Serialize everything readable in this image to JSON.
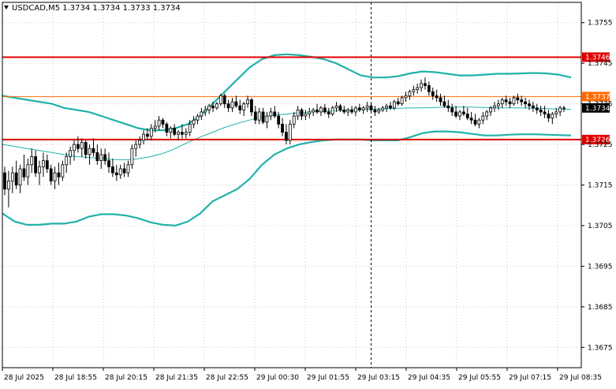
{
  "chart_data": {
    "type": "candlestick",
    "title": "USDCAD,M5  1.3734 1.3734 1.3733 1.3734",
    "symbol": "USDCAD",
    "timeframe": "M5",
    "ohlc_header": [
      "1.3734",
      "1.3734",
      "1.3733",
      "1.3734"
    ],
    "current_price": "1.3734",
    "ylim": [
      1.367,
      1.376
    ],
    "y_ticks": [
      "1.3755",
      "1.3745",
      "1.3735",
      "1.3725",
      "1.3715",
      "1.3705",
      "1.3695",
      "1.3685",
      "1.3675"
    ],
    "x_ticks": [
      "28 Jul 2025",
      "28 Jul 18:55",
      "28 Jul 20:15",
      "28 Jul 21:35",
      "28 Jul 22:55",
      "29 Jul 00:30",
      "29 Jul 01:55",
      "29 Jul 03:15",
      "29 Jul 04:35",
      "29 Jul 05:55",
      "29 Jul 07:15",
      "29 Jul 08:35"
    ],
    "horizontal_levels": [
      {
        "value": "1.3746",
        "price": 1.37465,
        "color": "#e00000",
        "width": 2
      },
      {
        "value": "1.3737",
        "price": 1.37368,
        "color": "#ff6a00",
        "width": 1
      },
      {
        "value": "1.3726",
        "price": 1.37262,
        "color": "#e00000",
        "width": 2
      }
    ],
    "cursor_candle_index": 95,
    "candles": [
      [
        1.3718,
        1.37195,
        1.37125,
        1.3714
      ],
      [
        1.3714,
        1.37185,
        1.37095,
        1.3716
      ],
      [
        1.3716,
        1.37195,
        1.3713,
        1.3718
      ],
      [
        1.3718,
        1.3721,
        1.3714,
        1.3715
      ],
      [
        1.3715,
        1.372,
        1.3713,
        1.3719
      ],
      [
        1.3719,
        1.37225,
        1.3716,
        1.3717
      ],
      [
        1.3717,
        1.37215,
        1.3715,
        1.372
      ],
      [
        1.372,
        1.3724,
        1.3718,
        1.3722
      ],
      [
        1.3722,
        1.37235,
        1.3717,
        1.3718
      ],
      [
        1.3718,
        1.3721,
        1.3715,
        1.37195
      ],
      [
        1.37195,
        1.3723,
        1.3717,
        1.3721
      ],
      [
        1.3721,
        1.37225,
        1.3718,
        1.3719
      ],
      [
        1.3719,
        1.372,
        1.3715,
        1.3716
      ],
      [
        1.3716,
        1.37195,
        1.3714,
        1.3718
      ],
      [
        1.3718,
        1.37205,
        1.3715,
        1.3717
      ],
      [
        1.3717,
        1.3721,
        1.3716,
        1.372
      ],
      [
        1.372,
        1.3723,
        1.3718,
        1.3722
      ],
      [
        1.3722,
        1.37245,
        1.372,
        1.37235
      ],
      [
        1.37235,
        1.3726,
        1.3721,
        1.3725
      ],
      [
        1.3725,
        1.3727,
        1.3723,
        1.3724
      ],
      [
        1.3724,
        1.37265,
        1.3722,
        1.37255
      ],
      [
        1.37255,
        1.3726,
        1.37215,
        1.37225
      ],
      [
        1.37225,
        1.3725,
        1.372,
        1.3724
      ],
      [
        1.3724,
        1.37265,
        1.3722,
        1.3723
      ],
      [
        1.3723,
        1.3725,
        1.372,
        1.3721
      ],
      [
        1.3721,
        1.3724,
        1.3719,
        1.37225
      ],
      [
        1.37225,
        1.3724,
        1.372,
        1.3721
      ],
      [
        1.3721,
        1.3723,
        1.3718,
        1.37195
      ],
      [
        1.37195,
        1.37215,
        1.3717,
        1.3718
      ],
      [
        1.3718,
        1.372,
        1.3716,
        1.37175
      ],
      [
        1.37175,
        1.372,
        1.37165,
        1.3719
      ],
      [
        1.3719,
        1.37205,
        1.3717,
        1.3718
      ],
      [
        1.3718,
        1.3721,
        1.3717,
        1.372
      ],
      [
        1.372,
        1.3725,
        1.3719,
        1.3724
      ],
      [
        1.3724,
        1.3726,
        1.3722,
        1.3725
      ],
      [
        1.3725,
        1.3727,
        1.3724,
        1.3726
      ],
      [
        1.3726,
        1.37285,
        1.3725,
        1.37275
      ],
      [
        1.37275,
        1.3729,
        1.3726,
        1.3727
      ],
      [
        1.3727,
        1.373,
        1.3726,
        1.3729
      ],
      [
        1.3729,
        1.3731,
        1.3728,
        1.37295
      ],
      [
        1.37295,
        1.3732,
        1.37285,
        1.3731
      ],
      [
        1.3731,
        1.37315,
        1.3729,
        1.373
      ],
      [
        1.373,
        1.37305,
        1.3727,
        1.3728
      ],
      [
        1.3728,
        1.37295,
        1.37265,
        1.3729
      ],
      [
        1.3729,
        1.373,
        1.3727,
        1.37275
      ],
      [
        1.37275,
        1.37285,
        1.3726,
        1.3728
      ],
      [
        1.3728,
        1.373,
        1.37265,
        1.37275
      ],
      [
        1.37275,
        1.3729,
        1.37265,
        1.3728
      ],
      [
        1.3728,
        1.3731,
        1.3727,
        1.373
      ],
      [
        1.373,
        1.3732,
        1.3729,
        1.3731
      ],
      [
        1.3731,
        1.37325,
        1.373,
        1.3732
      ],
      [
        1.3732,
        1.3734,
        1.3731,
        1.3733
      ],
      [
        1.3733,
        1.37345,
        1.3732,
        1.37335
      ],
      [
        1.37335,
        1.3735,
        1.37325,
        1.37345
      ],
      [
        1.37345,
        1.37355,
        1.3733,
        1.3734
      ],
      [
        1.3734,
        1.37355,
        1.37335,
        1.3735
      ],
      [
        1.3735,
        1.37375,
        1.37345,
        1.3737
      ],
      [
        1.3737,
        1.37375,
        1.3734,
        1.3735
      ],
      [
        1.3735,
        1.3736,
        1.3733,
        1.3734
      ],
      [
        1.3734,
        1.37365,
        1.3733,
        1.37355
      ],
      [
        1.37355,
        1.3737,
        1.3734,
        1.37345
      ],
      [
        1.37345,
        1.3736,
        1.37325,
        1.37335
      ],
      [
        1.37335,
        1.37355,
        1.3732,
        1.3735
      ],
      [
        1.3735,
        1.3737,
        1.3734,
        1.3736
      ],
      [
        1.3736,
        1.37365,
        1.3732,
        1.3733
      ],
      [
        1.3733,
        1.37345,
        1.373,
        1.3731
      ],
      [
        1.3731,
        1.3734,
        1.373,
        1.3733
      ],
      [
        1.3733,
        1.3734,
        1.373,
        1.37305
      ],
      [
        1.37305,
        1.3733,
        1.3729,
        1.3732
      ],
      [
        1.3732,
        1.3734,
        1.3731,
        1.3733
      ],
      [
        1.3733,
        1.37345,
        1.37315,
        1.3732
      ],
      [
        1.3732,
        1.3733,
        1.3729,
        1.373
      ],
      [
        1.373,
        1.37315,
        1.3727,
        1.3728
      ],
      [
        1.3728,
        1.373,
        1.3725,
        1.3726
      ],
      [
        1.3726,
        1.3731,
        1.3725,
        1.373
      ],
      [
        1.373,
        1.3733,
        1.3729,
        1.3732
      ],
      [
        1.3732,
        1.37345,
        1.3731,
        1.37335
      ],
      [
        1.37335,
        1.3734,
        1.3731,
        1.3732
      ],
      [
        1.3732,
        1.37335,
        1.3731,
        1.37325
      ],
      [
        1.37325,
        1.3734,
        1.37315,
        1.3733
      ],
      [
        1.3733,
        1.3734,
        1.3732,
        1.37335
      ],
      [
        1.37335,
        1.3735,
        1.37325,
        1.3733
      ],
      [
        1.3733,
        1.37345,
        1.3732,
        1.3734
      ],
      [
        1.3734,
        1.3735,
        1.37325,
        1.3733
      ],
      [
        1.3733,
        1.3734,
        1.37315,
        1.37325
      ],
      [
        1.37325,
        1.37345,
        1.3732,
        1.3734
      ],
      [
        1.3734,
        1.37355,
        1.3733,
        1.37345
      ],
      [
        1.37345,
        1.3735,
        1.3733,
        1.37335
      ],
      [
        1.37335,
        1.37345,
        1.37325,
        1.3733
      ],
      [
        1.3733,
        1.3734,
        1.3732,
        1.37335
      ],
      [
        1.37335,
        1.37345,
        1.37325,
        1.3733
      ],
      [
        1.3733,
        1.37345,
        1.3732,
        1.3734
      ],
      [
        1.3734,
        1.3735,
        1.3733,
        1.37335
      ],
      [
        1.37335,
        1.37345,
        1.37325,
        1.3734
      ],
      [
        1.3734,
        1.37355,
        1.3733,
        1.37345
      ],
      [
        1.37345,
        1.3735,
        1.3733,
        1.37335
      ],
      [
        1.37335,
        1.37345,
        1.3732,
        1.3733
      ],
      [
        1.3733,
        1.3734,
        1.37325,
        1.37335
      ],
      [
        1.37335,
        1.37345,
        1.3733,
        1.3734
      ],
      [
        1.3734,
        1.3735,
        1.3733,
        1.37345
      ],
      [
        1.37345,
        1.37355,
        1.37335,
        1.3734
      ],
      [
        1.3734,
        1.3736,
        1.37335,
        1.37355
      ],
      [
        1.37355,
        1.37365,
        1.37345,
        1.3735
      ],
      [
        1.3735,
        1.3737,
        1.37345,
        1.37365
      ],
      [
        1.37365,
        1.3738,
        1.37355,
        1.3737
      ],
      [
        1.3737,
        1.37385,
        1.3736,
        1.3738
      ],
      [
        1.3738,
        1.37395,
        1.3737,
        1.37385
      ],
      [
        1.37385,
        1.374,
        1.37375,
        1.3739
      ],
      [
        1.3739,
        1.3741,
        1.3738,
        1.374
      ],
      [
        1.374,
        1.37415,
        1.37385,
        1.37395
      ],
      [
        1.37395,
        1.37405,
        1.3737,
        1.3738
      ],
      [
        1.3738,
        1.3739,
        1.3736,
        1.3737
      ],
      [
        1.3737,
        1.37385,
        1.37355,
        1.37365
      ],
      [
        1.37365,
        1.37375,
        1.37345,
        1.37355
      ],
      [
        1.37355,
        1.3737,
        1.3734,
        1.37345
      ],
      [
        1.37345,
        1.3736,
        1.3733,
        1.3734
      ],
      [
        1.3734,
        1.3735,
        1.3732,
        1.3733
      ],
      [
        1.3733,
        1.37345,
        1.37315,
        1.3732
      ],
      [
        1.3732,
        1.37335,
        1.3731,
        1.3733
      ],
      [
        1.3733,
        1.37345,
        1.3732,
        1.37325
      ],
      [
        1.37325,
        1.3734,
        1.3731,
        1.37315
      ],
      [
        1.37315,
        1.3733,
        1.373,
        1.3731
      ],
      [
        1.3731,
        1.37325,
        1.37295,
        1.373
      ],
      [
        1.373,
        1.37315,
        1.3729,
        1.3731
      ],
      [
        1.3731,
        1.3733,
        1.373,
        1.3732
      ],
      [
        1.3732,
        1.37335,
        1.3731,
        1.3733
      ],
      [
        1.3733,
        1.37345,
        1.3732,
        1.3734
      ],
      [
        1.3734,
        1.37355,
        1.3733,
        1.37345
      ],
      [
        1.37345,
        1.3736,
        1.37335,
        1.3735
      ],
      [
        1.3735,
        1.37365,
        1.3734,
        1.3736
      ],
      [
        1.3736,
        1.3737,
        1.37345,
        1.37355
      ],
      [
        1.37355,
        1.37365,
        1.3734,
        1.3735
      ],
      [
        1.3735,
        1.3737,
        1.37345,
        1.37365
      ],
      [
        1.37365,
        1.37375,
        1.3735,
        1.3736
      ],
      [
        1.3736,
        1.3737,
        1.37345,
        1.37355
      ],
      [
        1.37355,
        1.37365,
        1.3734,
        1.3735
      ],
      [
        1.3735,
        1.3736,
        1.37335,
        1.37345
      ],
      [
        1.37345,
        1.37355,
        1.3733,
        1.3734
      ],
      [
        1.3734,
        1.3735,
        1.37325,
        1.37335
      ],
      [
        1.37335,
        1.37345,
        1.3732,
        1.3733
      ],
      [
        1.3733,
        1.37345,
        1.37315,
        1.37325
      ],
      [
        1.37325,
        1.37335,
        1.37305,
        1.37315
      ],
      [
        1.37315,
        1.3733,
        1.373,
        1.37325
      ],
      [
        1.37325,
        1.3734,
        1.37315,
        1.3733
      ],
      [
        1.3733,
        1.37345,
        1.3732,
        1.3734
      ],
      [
        1.3734,
        1.37345,
        1.3733,
        1.3734
      ]
    ],
    "bollinger": {
      "upper": [
        1.3737,
        1.37365,
        1.3736,
        1.37355,
        1.3735,
        1.3734,
        1.37335,
        1.3733,
        1.3732,
        1.3731,
        1.373,
        1.3729,
        1.37285,
        1.37285,
        1.3729,
        1.373,
        1.3732,
        1.3735,
        1.3738,
        1.3741,
        1.3744,
        1.3746,
        1.3747,
        1.37472,
        1.3747,
        1.37466,
        1.3746,
        1.3745,
        1.37435,
        1.3742,
        1.37415,
        1.37415,
        1.37418,
        1.37425,
        1.3743,
        1.37428,
        1.37424,
        1.3742,
        1.3742,
        1.37422,
        1.37424,
        1.37424,
        1.37425,
        1.37426,
        1.37425,
        1.37422,
        1.37415
      ],
      "middle": [
        1.3725,
        1.37245,
        1.3724,
        1.37235,
        1.3723,
        1.37225,
        1.3722,
        1.37218,
        1.37215,
        1.37213,
        1.37212,
        1.37215,
        1.3722,
        1.37228,
        1.3724,
        1.37255,
        1.37268,
        1.3728,
        1.37292,
        1.37302,
        1.3731,
        1.37318,
        1.37322,
        1.37325,
        1.37328,
        1.3733,
        1.37332,
        1.37333,
        1.37335,
        1.37336,
        1.37337,
        1.37338,
        1.37339,
        1.3734,
        1.3734,
        1.37341,
        1.37342,
        1.37342,
        1.37342,
        1.37341,
        1.3734,
        1.3734,
        1.3734,
        1.37339,
        1.37338,
        1.37337,
        1.37336
      ],
      "lower": [
        1.3708,
        1.3706,
        1.37052,
        1.37052,
        1.37055,
        1.37055,
        1.3706,
        1.37072,
        1.37078,
        1.37078,
        1.37075,
        1.37068,
        1.37058,
        1.37052,
        1.3705,
        1.3706,
        1.3708,
        1.3711,
        1.37125,
        1.3714,
        1.37165,
        1.372,
        1.37225,
        1.3724,
        1.3725,
        1.37256,
        1.3726,
        1.37262,
        1.37262,
        1.37262,
        1.3726,
        1.3726,
        1.3726,
        1.37268,
        1.37278,
        1.37282,
        1.37282,
        1.3728,
        1.37276,
        1.37272,
        1.37272,
        1.37274,
        1.37275,
        1.37275,
        1.37274,
        1.37273,
        1.37272
      ]
    },
    "colors": {
      "bollinger_outer": "#20b2aa",
      "bollinger_middle": "#20b2aa",
      "candle": "#000000",
      "level_strong": "#e00000",
      "level_weak": "#ff6a00",
      "grid": "#c8c8c8",
      "background": "#ffffff"
    },
    "grid": true,
    "legend": "none"
  }
}
